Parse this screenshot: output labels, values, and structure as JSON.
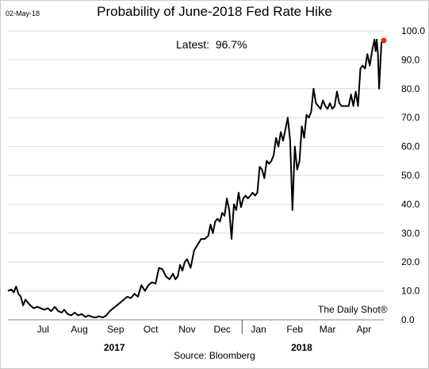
{
  "header": {
    "date": "02-May-18",
    "title": "Probability of June-2018 Fed Rate Hike"
  },
  "annotation": {
    "latest_label": "Latest:",
    "latest_value": "96.7%"
  },
  "watermark": "The Daily Shot®",
  "source": "Source: Bloomberg",
  "colors": {
    "line": "#000000",
    "marker": "#e8242b",
    "grid": "#d9d9d9",
    "axis": "#888888"
  },
  "chart_data": {
    "type": "line",
    "title": "Probability of June-2018 Fed Rate Hike",
    "xlabel": "",
    "ylabel": "",
    "ylim": [
      0,
      100
    ],
    "yticks": [
      "0.0",
      "10.0",
      "20.0",
      "30.0",
      "40.0",
      "50.0",
      "60.0",
      "70.0",
      "80.0",
      "90.0",
      "100.0"
    ],
    "ytick_values": [
      0,
      10,
      20,
      30,
      40,
      50,
      60,
      70,
      80,
      90,
      100
    ],
    "y_axis_side": "right",
    "grid": "horizontal",
    "xlim": [
      "2017-06-15",
      "2018-05-02"
    ],
    "x_tick_labels": [
      {
        "label": "Jul",
        "date": "2017-07-15"
      },
      {
        "label": "Aug",
        "date": "2017-08-15"
      },
      {
        "label": "Sep",
        "date": "2017-09-15"
      },
      {
        "label": "Oct",
        "date": "2017-10-15"
      },
      {
        "label": "Nov",
        "date": "2017-11-15"
      },
      {
        "label": "Dec",
        "date": "2017-12-15"
      },
      {
        "label": "Jan",
        "date": "2018-01-15"
      },
      {
        "label": "Feb",
        "date": "2018-02-15"
      },
      {
        "label": "Mar",
        "date": "2018-03-15"
      },
      {
        "label": "Apr",
        "date": "2018-04-15"
      }
    ],
    "year_labels": [
      {
        "label": "2017",
        "date": "2017-09-15"
      },
      {
        "label": "2018",
        "date": "2018-02-22"
      }
    ],
    "year_divider": "2018-01-01",
    "series": [
      {
        "points": [
          [
            "2017-06-15",
            10
          ],
          [
            "2017-06-18",
            10.5
          ],
          [
            "2017-06-20",
            9.5
          ],
          [
            "2017-06-22",
            11.5
          ],
          [
            "2017-06-24",
            9
          ],
          [
            "2017-06-26",
            8
          ],
          [
            "2017-06-28",
            5
          ],
          [
            "2017-06-30",
            7
          ],
          [
            "2017-07-02",
            6
          ],
          [
            "2017-07-04",
            5
          ],
          [
            "2017-07-07",
            4
          ],
          [
            "2017-07-10",
            4.5
          ],
          [
            "2017-07-13",
            4
          ],
          [
            "2017-07-16",
            3.5
          ],
          [
            "2017-07-19",
            4
          ],
          [
            "2017-07-22",
            3
          ],
          [
            "2017-07-25",
            4.5
          ],
          [
            "2017-07-28",
            3
          ],
          [
            "2017-07-31",
            2.5
          ],
          [
            "2017-08-02",
            3.5
          ],
          [
            "2017-08-05",
            2
          ],
          [
            "2017-08-08",
            1.5
          ],
          [
            "2017-08-11",
            2.5
          ],
          [
            "2017-08-14",
            1.5
          ],
          [
            "2017-08-17",
            2
          ],
          [
            "2017-08-20",
            1
          ],
          [
            "2017-08-23",
            1.5
          ],
          [
            "2017-08-26",
            1
          ],
          [
            "2017-08-29",
            0.8
          ],
          [
            "2017-09-01",
            1.2
          ],
          [
            "2017-09-04",
            0.8
          ],
          [
            "2017-09-07",
            1.5
          ],
          [
            "2017-09-10",
            3
          ],
          [
            "2017-09-13",
            4
          ],
          [
            "2017-09-16",
            5
          ],
          [
            "2017-09-19",
            6
          ],
          [
            "2017-09-22",
            7
          ],
          [
            "2017-09-25",
            8
          ],
          [
            "2017-09-28",
            7.5
          ],
          [
            "2017-10-01",
            9
          ],
          [
            "2017-10-04",
            8
          ],
          [
            "2017-10-07",
            12
          ],
          [
            "2017-10-10",
            10
          ],
          [
            "2017-10-13",
            12
          ],
          [
            "2017-10-16",
            13
          ],
          [
            "2017-10-19",
            12.5
          ],
          [
            "2017-10-22",
            18
          ],
          [
            "2017-10-25",
            17.5
          ],
          [
            "2017-10-28",
            15
          ],
          [
            "2017-10-31",
            14
          ],
          [
            "2017-11-03",
            16
          ],
          [
            "2017-11-05",
            14
          ],
          [
            "2017-11-07",
            15
          ],
          [
            "2017-11-09",
            19
          ],
          [
            "2017-11-11",
            17
          ],
          [
            "2017-11-13",
            20
          ],
          [
            "2017-11-15",
            21
          ],
          [
            "2017-11-18",
            18
          ],
          [
            "2017-11-21",
            24
          ],
          [
            "2017-11-24",
            26
          ],
          [
            "2017-11-27",
            28
          ],
          [
            "2017-11-30",
            28
          ],
          [
            "2017-12-03",
            29
          ],
          [
            "2017-12-05",
            33
          ],
          [
            "2017-12-07",
            30
          ],
          [
            "2017-12-09",
            34
          ],
          [
            "2017-12-11",
            35
          ],
          [
            "2017-12-13",
            34
          ],
          [
            "2017-12-15",
            37
          ],
          [
            "2017-12-17",
            36
          ],
          [
            "2017-12-19",
            42
          ],
          [
            "2017-12-21",
            38
          ],
          [
            "2017-12-23",
            28
          ],
          [
            "2017-12-25",
            40
          ],
          [
            "2017-12-27",
            38
          ],
          [
            "2017-12-29",
            44
          ],
          [
            "2017-12-31",
            39
          ],
          [
            "2018-01-02",
            42
          ],
          [
            "2018-01-04",
            43
          ],
          [
            "2018-01-06",
            42
          ],
          [
            "2018-01-08",
            43
          ],
          [
            "2018-01-10",
            44
          ],
          [
            "2018-01-12",
            43
          ],
          [
            "2018-01-14",
            44
          ],
          [
            "2018-01-16",
            53
          ],
          [
            "2018-01-18",
            52
          ],
          [
            "2018-01-20",
            49
          ],
          [
            "2018-01-22",
            55
          ],
          [
            "2018-01-24",
            54
          ],
          [
            "2018-01-26",
            55
          ],
          [
            "2018-01-28",
            57
          ],
          [
            "2018-01-30",
            63
          ],
          [
            "2018-02-01",
            60
          ],
          [
            "2018-02-03",
            65
          ],
          [
            "2018-02-05",
            62
          ],
          [
            "2018-02-07",
            66
          ],
          [
            "2018-02-09",
            70
          ],
          [
            "2018-02-11",
            62
          ],
          [
            "2018-02-13",
            38
          ],
          [
            "2018-02-15",
            60
          ],
          [
            "2018-02-17",
            52
          ],
          [
            "2018-02-19",
            55
          ],
          [
            "2018-02-21",
            67
          ],
          [
            "2018-02-23",
            63
          ],
          [
            "2018-02-25",
            71
          ],
          [
            "2018-02-27",
            70
          ],
          [
            "2018-03-01",
            72
          ],
          [
            "2018-03-03",
            80
          ],
          [
            "2018-03-05",
            75
          ],
          [
            "2018-03-07",
            74
          ],
          [
            "2018-03-09",
            73
          ],
          [
            "2018-03-11",
            76
          ],
          [
            "2018-03-13",
            74
          ],
          [
            "2018-03-15",
            73
          ],
          [
            "2018-03-17",
            75
          ],
          [
            "2018-03-19",
            73
          ],
          [
            "2018-03-21",
            74
          ],
          [
            "2018-03-23",
            79
          ],
          [
            "2018-03-25",
            75
          ],
          [
            "2018-03-27",
            74
          ],
          [
            "2018-03-29",
            74
          ],
          [
            "2018-03-31",
            74
          ],
          [
            "2018-04-02",
            74
          ],
          [
            "2018-04-04",
            78
          ],
          [
            "2018-04-06",
            74
          ],
          [
            "2018-04-08",
            79
          ],
          [
            "2018-04-10",
            74
          ],
          [
            "2018-04-12",
            87
          ],
          [
            "2018-04-14",
            88
          ],
          [
            "2018-04-16",
            87
          ],
          [
            "2018-04-18",
            92
          ],
          [
            "2018-04-20",
            88
          ],
          [
            "2018-04-22",
            93
          ],
          [
            "2018-04-24",
            97
          ],
          [
            "2018-04-25",
            93
          ],
          [
            "2018-04-26",
            97
          ],
          [
            "2018-04-27",
            92
          ],
          [
            "2018-04-28",
            80
          ],
          [
            "2018-04-30",
            96
          ],
          [
            "2018-05-02",
            96.7
          ]
        ]
      }
    ],
    "latest_point": {
      "date": "2018-05-02",
      "value": 96.7
    }
  }
}
